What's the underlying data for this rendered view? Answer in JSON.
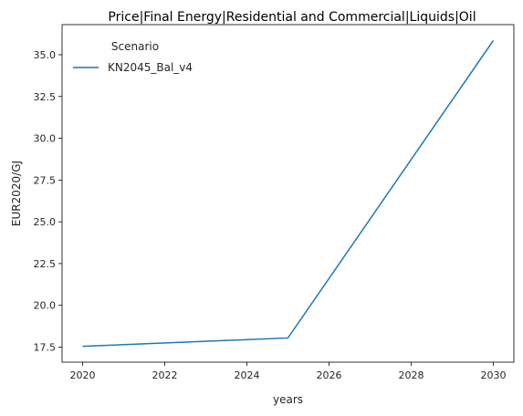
{
  "chart_data": {
    "type": "line",
    "title": "Price|Final Energy|Residential and Commercial|Liquids|Oil",
    "xlabel": "years",
    "ylabel": "EUR2020/GJ",
    "xlim": [
      2019.5,
      2030.5
    ],
    "ylim": [
      16.6,
      36.8
    ],
    "x_ticks": [
      2020,
      2022,
      2024,
      2026,
      2028,
      2030
    ],
    "y_ticks": [
      17.5,
      20.0,
      22.5,
      25.0,
      27.5,
      30.0,
      32.5,
      35.0
    ],
    "grid": false,
    "legend": {
      "title": "Scenario",
      "position": "top-left"
    },
    "series": [
      {
        "name": "KN2045_Bal_v4",
        "color": "#1f77b4",
        "x": [
          2020,
          2025,
          2030
        ],
        "y": [
          17.55,
          18.05,
          35.85
        ]
      }
    ]
  }
}
